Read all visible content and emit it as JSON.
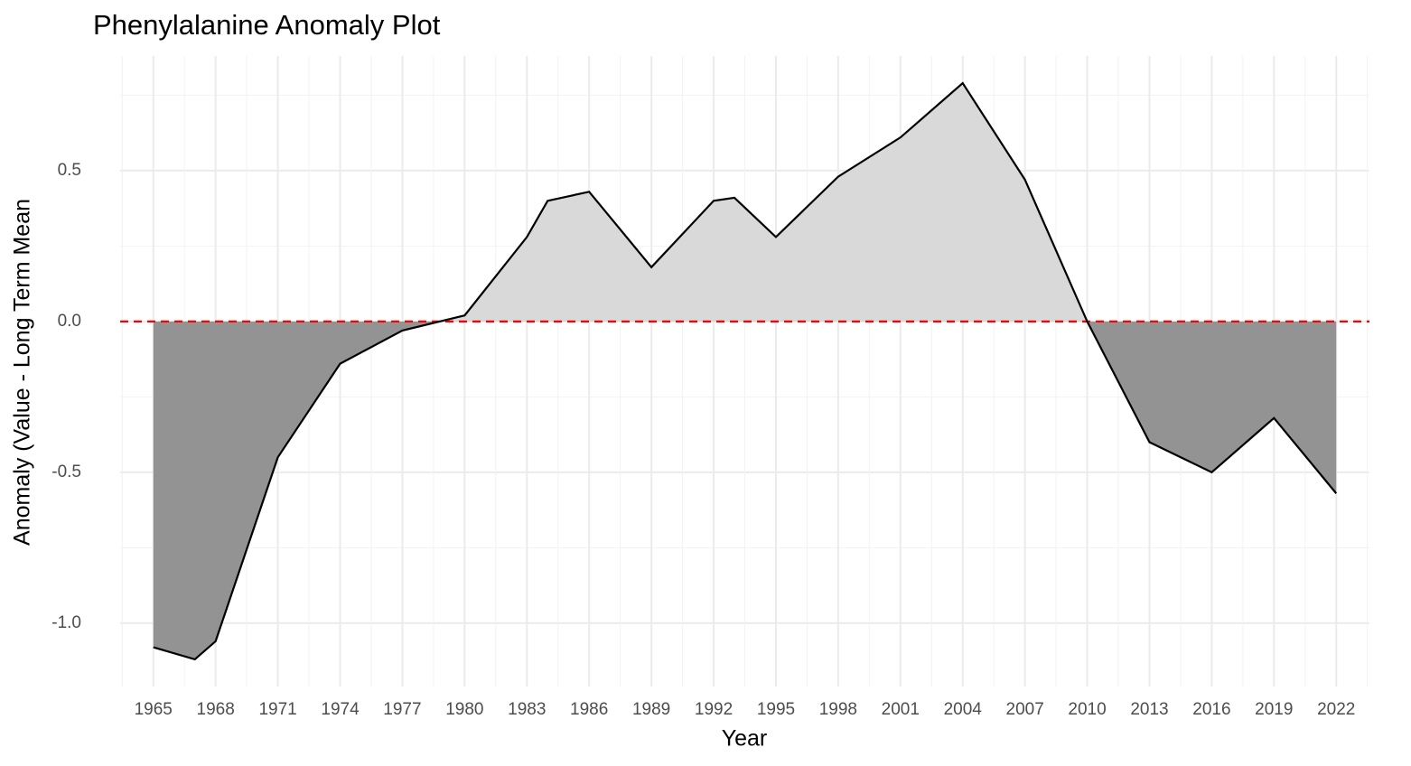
{
  "chart_data": {
    "type": "area",
    "title": "Phenylalanine Anomaly Plot",
    "x_label": "Year",
    "y_label": "Anomaly (Value - Long Term Mean",
    "x": [
      1965,
      1967,
      1968,
      1971,
      1974,
      1977,
      1980,
      1983,
      1984,
      1986,
      1989,
      1992,
      1993,
      1995,
      1998,
      2001,
      2004,
      2007,
      2010,
      2013,
      2016,
      2019,
      2022
    ],
    "values": [
      -1.08,
      -1.12,
      -1.06,
      -0.45,
      -0.14,
      -0.03,
      0.02,
      0.28,
      0.4,
      0.43,
      0.18,
      0.4,
      0.41,
      0.28,
      0.48,
      0.61,
      0.79,
      0.47,
      0.0,
      -0.4,
      -0.5,
      -0.32,
      -0.57
    ],
    "positive_color": "#d9d9d9",
    "negative_color": "#939393",
    "line_color": "#000000",
    "reference_line": {
      "value": 0,
      "color": "#ff0000"
    },
    "xlim": [
      1963.4,
      2023.6
    ],
    "xticks": [
      1965,
      1968,
      1971,
      1974,
      1977,
      1980,
      1983,
      1986,
      1989,
      1992,
      1995,
      1998,
      2001,
      2004,
      2007,
      2010,
      2013,
      2016,
      2019,
      2022
    ],
    "ylim": [
      -1.21,
      0.88
    ],
    "yticks": [
      {
        "value": -1,
        "label": "-1.0"
      },
      {
        "value": -0.5,
        "label": "-0.5"
      },
      {
        "value": 0,
        "label": "0.0"
      },
      0.5
    ],
    "grid": true
  }
}
